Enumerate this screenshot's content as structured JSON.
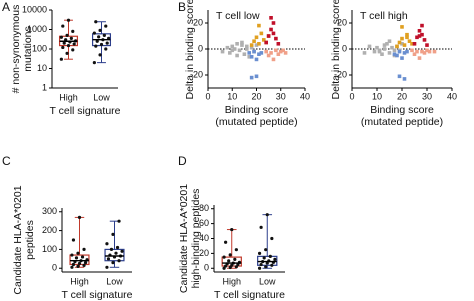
{
  "chart_data": [
    {
      "type": "box",
      "panel": "A",
      "log": true,
      "ylabel": [
        "# non-synonymous",
        "mutations"
      ],
      "xlabel": "T cell signature",
      "categories": [
        "High",
        "Low"
      ],
      "ylim": [
        1,
        10000
      ],
      "yticks": [
        1,
        10,
        100,
        1000,
        10000
      ],
      "boxes": [
        {
          "color": "#c0392b",
          "min": 30,
          "q1": 150,
          "median": 250,
          "q3": 450,
          "max": 3000,
          "points": [
            30,
            60,
            90,
            120,
            150,
            180,
            200,
            230,
            260,
            300,
            350,
            400,
            500,
            800,
            1500,
            3000
          ]
        },
        {
          "color": "#2c3e8c",
          "min": 20,
          "q1": 150,
          "median": 300,
          "q3": 600,
          "max": 2500,
          "points": [
            20,
            50,
            100,
            140,
            170,
            200,
            250,
            300,
            350,
            420,
            500,
            650,
            900,
            1500,
            2500
          ]
        }
      ]
    },
    {
      "type": "scatter",
      "panel": "B",
      "title": "T cell low",
      "ylabel": [
        "Delta in binding score"
      ],
      "xlabel": [
        "Binding score",
        "(mutated peptide)"
      ],
      "xlim": [
        0,
        40
      ],
      "xticks": [
        0,
        10,
        20,
        30,
        40
      ],
      "ylim": [
        -30,
        30
      ],
      "yticks": [
        -20,
        0,
        20
      ],
      "reference_line": 0,
      "series": [
        {
          "color": "#b0b0b0",
          "x": [
            6,
            8,
            9,
            10,
            11,
            12,
            12,
            13,
            14,
            15,
            16,
            17,
            18,
            19,
            20,
            14,
            10,
            16
          ],
          "y": [
            -2,
            1,
            -3,
            2,
            0,
            -5,
            4,
            -1,
            3,
            -4,
            2,
            -6,
            1,
            -2,
            3,
            5,
            -1,
            0
          ]
        },
        {
          "color": "#6a8fd0",
          "x": [
            17,
            18,
            19,
            20,
            21,
            22,
            18,
            20
          ],
          "y": [
            -3,
            -6,
            -2,
            -8,
            -4,
            -3,
            -22,
            -21
          ]
        },
        {
          "color": "#e0a020",
          "x": [
            18,
            19,
            20,
            21,
            22,
            23,
            24,
            21,
            25
          ],
          "y": [
            3,
            6,
            9,
            4,
            12,
            7,
            5,
            18,
            10
          ]
        },
        {
          "color": "#c0102a",
          "x": [
            24,
            25,
            26,
            27,
            28,
            26,
            29,
            27
          ],
          "y": [
            5,
            10,
            15,
            20,
            8,
            24,
            4,
            12
          ]
        },
        {
          "color": "#f0a088",
          "x": [
            24,
            25,
            26,
            27,
            28,
            29,
            30,
            31,
            32
          ],
          "y": [
            -2,
            -5,
            -3,
            -8,
            -1,
            -4,
            -2,
            -1,
            -3
          ]
        }
      ]
    },
    {
      "type": "scatter",
      "title": "T cell high",
      "ylabel": [
        "Delta in binding score"
      ],
      "xlabel": [
        "Binding score",
        "(mutated peptide)"
      ],
      "xlim": [
        0,
        40
      ],
      "xticks": [
        0,
        10,
        20,
        30,
        40
      ],
      "ylim": [
        -30,
        30
      ],
      "yticks": [
        -20,
        0,
        20
      ],
      "reference_line": 0,
      "series": [
        {
          "color": "#b0b0b0",
          "x": [
            5,
            7,
            9,
            10,
            11,
            12,
            13,
            13,
            14,
            15,
            16,
            17,
            18,
            19,
            20,
            15,
            11,
            17
          ],
          "y": [
            -3,
            2,
            -2,
            1,
            -1,
            -4,
            3,
            0,
            4,
            -3,
            1,
            -5,
            2,
            -1,
            4,
            6,
            -2,
            -1
          ]
        },
        {
          "color": "#6a8fd0",
          "x": [
            17,
            18,
            19,
            20,
            21,
            22,
            19,
            21
          ],
          "y": [
            -4,
            -5,
            -2,
            -7,
            -3,
            -2,
            -21,
            -23
          ]
        },
        {
          "color": "#e0a020",
          "x": [
            18,
            19,
            20,
            21,
            22,
            23,
            24,
            20,
            22
          ],
          "y": [
            2,
            5,
            8,
            3,
            11,
            6,
            4,
            17,
            9
          ]
        },
        {
          "color": "#c0102a",
          "x": [
            25,
            26,
            27,
            28,
            29,
            27,
            30,
            28
          ],
          "y": [
            4,
            9,
            14,
            18,
            7,
            10,
            3,
            11
          ]
        },
        {
          "color": "#f0a088",
          "x": [
            24,
            25,
            26,
            27,
            28,
            29,
            30,
            31,
            33
          ],
          "y": [
            -1,
            -4,
            -2,
            -7,
            -2,
            -3,
            -1,
            -2,
            -2
          ]
        }
      ]
    },
    {
      "type": "box",
      "panel": "C",
      "ylabel": [
        "Candidate HLA-A*0201",
        "peptides"
      ],
      "xlabel": "T cell signature",
      "categories": [
        "High",
        "Low"
      ],
      "ylim": [
        -20,
        320
      ],
      "yticks": [
        0,
        100,
        200,
        300
      ],
      "boxes": [
        {
          "color": "#c0392b",
          "min": 5,
          "q1": 20,
          "median": 40,
          "q3": 70,
          "max": 270,
          "points": [
            5,
            10,
            15,
            20,
            25,
            30,
            35,
            40,
            45,
            55,
            60,
            70,
            80,
            100,
            150,
            270
          ]
        },
        {
          "color": "#2c3e8c",
          "min": 5,
          "q1": 40,
          "median": 65,
          "q3": 100,
          "max": 250,
          "points": [
            5,
            30,
            40,
            50,
            60,
            65,
            70,
            80,
            90,
            100,
            110,
            130,
            180,
            250
          ]
        }
      ]
    },
    {
      "type": "box",
      "panel": "D",
      "ylabel": [
        "Candidate HLA-A*0201",
        "high-binding peptides"
      ],
      "xlabel": "T cell signature",
      "categories": [
        "High",
        "Low"
      ],
      "ylim": [
        -5,
        85
      ],
      "yticks": [
        0,
        20,
        40,
        60,
        80
      ],
      "boxes": [
        {
          "color": "#c0392b",
          "min": 0,
          "q1": 3,
          "median": 7,
          "q3": 15,
          "max": 52,
          "points": [
            0,
            1,
            2,
            3,
            4,
            5,
            6,
            7,
            8,
            10,
            12,
            15,
            18,
            25,
            35,
            52
          ]
        },
        {
          "color": "#2c3e8c",
          "min": 0,
          "q1": 4,
          "median": 9,
          "q3": 16,
          "max": 72,
          "points": [
            0,
            2,
            4,
            5,
            7,
            8,
            9,
            10,
            12,
            14,
            16,
            20,
            25,
            40,
            55,
            72
          ]
        }
      ]
    }
  ]
}
